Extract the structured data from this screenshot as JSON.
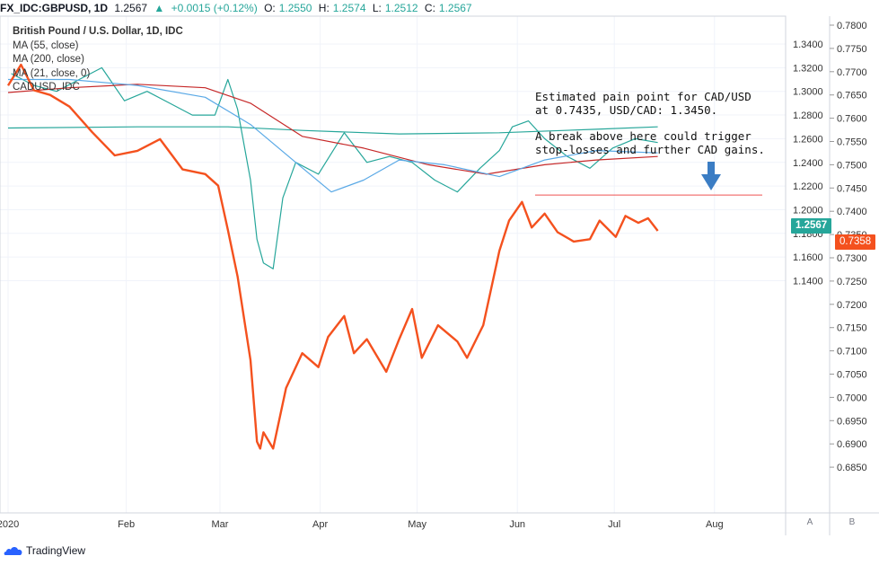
{
  "header": {
    "symbol": "FX_IDC:GBPUSD, 1D",
    "last": "1.2567",
    "change": "+0.0015 (+0.12%)",
    "open_label": "O:",
    "open": "1.2550",
    "high_label": "H:",
    "high": "1.2574",
    "low_label": "L:",
    "low": "1.2512",
    "close_label": "C:",
    "close": "1.2567"
  },
  "legend": {
    "title": "British Pound / U.S. Dollar, 1D, IDC",
    "ma55": "MA (55, close)",
    "ma200": "MA (200, close)",
    "ma21": "MA (21, close, 0)",
    "cadusd": "CADUSD, IDC"
  },
  "annotation": {
    "line1": "Estimated pain point for CAD/USD",
    "line2": "at 0.7435, USD/CAD: 1.3450.",
    "line3": "A break above here could trigger",
    "line4": "stop-losses and further CAD gains."
  },
  "price_tags": {
    "gbpusd": "1.2567",
    "cadusd": "0.7358"
  },
  "axis_buttons": {
    "a": "A",
    "b": "B"
  },
  "branding": {
    "name": "TradingView"
  },
  "colors": {
    "up": "#26a69a",
    "down": "#ef5350",
    "cadusd": "#f4511e",
    "ma55": "#5aa9e6",
    "ma200": "#26a69a",
    "ma21": "#c62828",
    "arrow": "#3b7dc4"
  },
  "chart_data": {
    "type": "line",
    "title": "British Pound / U.S. Dollar, 1D, IDC",
    "x_tick_labels": [
      "2020",
      "Feb",
      "Mar",
      "Apr",
      "May",
      "Jun",
      "Jul",
      "Aug"
    ],
    "left_axis": {
      "ticks": [
        1.14,
        1.16,
        1.18,
        1.2,
        1.22,
        1.24,
        1.26,
        1.28,
        1.3,
        1.32,
        1.34
      ],
      "ylim": [
        1.13,
        1.355
      ]
    },
    "right_axis": {
      "ticks": [
        0.685,
        0.69,
        0.695,
        0.7,
        0.705,
        0.71,
        0.715,
        0.72,
        0.725,
        0.73,
        0.735,
        0.74,
        0.745,
        0.75,
        0.755,
        0.76,
        0.765,
        0.77,
        0.775,
        0.78
      ],
      "ylim": [
        0.6815,
        0.7815
      ]
    },
    "grid": true,
    "pain_point_level": 0.7435,
    "series": [
      {
        "name": "GBPUSD, close",
        "axis": "left",
        "dates": [
          "2020-01-02",
          "2020-01-09",
          "2020-01-16",
          "2020-01-23",
          "2020-01-30",
          "2020-02-06",
          "2020-02-13",
          "2020-02-20",
          "2020-02-27",
          "2020-03-05",
          "2020-03-09",
          "2020-03-12",
          "2020-03-16",
          "2020-03-18",
          "2020-03-20",
          "2020-03-23",
          "2020-03-26",
          "2020-03-30",
          "2020-04-06",
          "2020-04-14",
          "2020-04-21",
          "2020-04-28",
          "2020-05-05",
          "2020-05-12",
          "2020-05-19",
          "2020-05-26",
          "2020-06-01",
          "2020-06-05",
          "2020-06-10",
          "2020-06-15",
          "2020-06-22",
          "2020-06-29",
          "2020-07-06",
          "2020-07-13",
          "2020-07-20"
        ],
        "values": [
          1.315,
          1.305,
          1.3,
          1.31,
          1.32,
          1.292,
          1.3,
          1.29,
          1.28,
          1.28,
          1.31,
          1.285,
          1.225,
          1.175,
          1.155,
          1.15,
          1.21,
          1.24,
          1.23,
          1.265,
          1.24,
          1.245,
          1.24,
          1.225,
          1.215,
          1.235,
          1.25,
          1.27,
          1.275,
          1.26,
          1.245,
          1.235,
          1.252,
          1.26,
          1.2567
        ]
      },
      {
        "name": "CADUSD, IDC",
        "axis": "right",
        "dates": [
          "2020-01-01",
          "2020-01-05",
          "2020-01-09",
          "2020-01-14",
          "2020-01-20",
          "2020-01-27",
          "2020-02-03",
          "2020-02-10",
          "2020-02-17",
          "2020-02-24",
          "2020-03-02",
          "2020-03-06",
          "2020-03-09",
          "2020-03-12",
          "2020-03-16",
          "2020-03-18",
          "2020-03-19",
          "2020-03-20",
          "2020-03-23",
          "2020-03-27",
          "2020-04-01",
          "2020-04-06",
          "2020-04-09",
          "2020-04-14",
          "2020-04-17",
          "2020-04-21",
          "2020-04-27",
          "2020-05-01",
          "2020-05-05",
          "2020-05-08",
          "2020-05-13",
          "2020-05-19",
          "2020-05-22",
          "2020-05-27",
          "2020-06-01",
          "2020-06-04",
          "2020-06-08",
          "2020-06-11",
          "2020-06-15",
          "2020-06-19",
          "2020-06-24",
          "2020-06-29",
          "2020-07-02",
          "2020-07-07",
          "2020-07-10",
          "2020-07-14",
          "2020-07-17",
          "2020-07-20"
        ],
        "values": [
          0.767,
          0.7715,
          0.766,
          0.765,
          0.7625,
          0.757,
          0.752,
          0.753,
          0.7555,
          0.749,
          0.748,
          0.7455,
          0.736,
          0.726,
          0.708,
          0.6905,
          0.689,
          0.6925,
          0.689,
          0.702,
          0.7095,
          0.7065,
          0.713,
          0.7175,
          0.7095,
          0.7125,
          0.7055,
          0.7125,
          0.719,
          0.7085,
          0.7155,
          0.712,
          0.7085,
          0.7155,
          0.7315,
          0.738,
          0.742,
          0.7365,
          0.7395,
          0.7355,
          0.7335,
          0.734,
          0.738,
          0.7345,
          0.739,
          0.7375,
          0.7385,
          0.7358
        ]
      },
      {
        "name": "MA (55, close)",
        "axis": "left",
        "dates": [
          "2020-01-01",
          "2020-01-20",
          "2020-02-10",
          "2020-03-02",
          "2020-03-16",
          "2020-03-30",
          "2020-04-10",
          "2020-04-20",
          "2020-05-01",
          "2020-05-15",
          "2020-06-01",
          "2020-06-15",
          "2020-07-01",
          "2020-07-20"
        ],
        "values": [
          1.31,
          1.31,
          1.305,
          1.295,
          1.272,
          1.24,
          1.215,
          1.225,
          1.242,
          1.238,
          1.228,
          1.242,
          1.25,
          1.248
        ]
      },
      {
        "name": "MA (200, close)",
        "axis": "left",
        "dates": [
          "2020-01-01",
          "2020-02-10",
          "2020-03-09",
          "2020-04-01",
          "2020-05-01",
          "2020-06-01",
          "2020-07-01",
          "2020-07-20"
        ],
        "values": [
          1.269,
          1.27,
          1.27,
          1.267,
          1.264,
          1.265,
          1.268,
          1.27
        ]
      },
      {
        "name": "MA (21, close, 0)",
        "axis": "left",
        "dates": [
          "2020-01-01",
          "2020-01-20",
          "2020-02-10",
          "2020-03-02",
          "2020-03-16",
          "2020-04-01",
          "2020-04-20",
          "2020-05-10",
          "2020-05-28",
          "2020-06-15",
          "2020-07-01",
          "2020-07-20"
        ],
        "values": [
          1.299,
          1.303,
          1.306,
          1.303,
          1.29,
          1.262,
          1.252,
          1.238,
          1.23,
          1.238,
          1.242,
          1.245
        ]
      }
    ]
  }
}
